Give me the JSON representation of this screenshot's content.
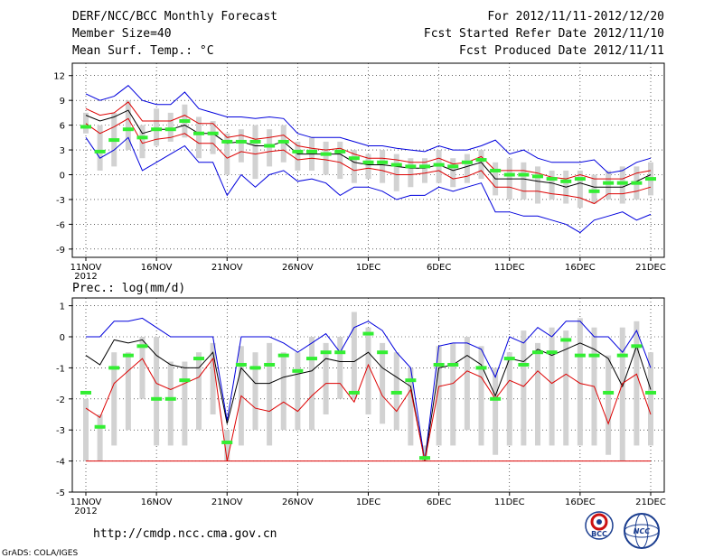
{
  "header": {
    "title": "DERF/NCC/BCC Monthly Forecast",
    "member_size": "Member Size=40",
    "variable": "Mean Surf. Temp.: °C",
    "period": "For 2012/11/11-2012/12/20",
    "fcst_started": "Fcst Started Refer Date 2012/11/10",
    "fcst_produced": "Fcst Produced Date 2012/11/11"
  },
  "footer": {
    "url": "http://cmdp.ncc.cma.gov.cn",
    "grads_credit": "GrADS: COLA/IGES",
    "logo_left_text": "BCC",
    "logo_right_text": "NCC"
  },
  "chart_data": [
    {
      "type": "line",
      "title": "Mean Surf. Temp.: °C",
      "x_tick_labels": [
        "11NOV",
        "16NOV",
        "21NOV",
        "26NOV",
        "1DEC",
        "6DEC",
        "11DEC",
        "16DEC",
        "21DEC"
      ],
      "x_year_label": "2012",
      "y_ticks": [
        12,
        9,
        6,
        3,
        0,
        -3,
        -6,
        -9
      ],
      "ylim": [
        -10,
        13.5
      ],
      "grid": true,
      "series": [
        {
          "name": "max",
          "color": "#0000dd",
          "values": [
            9.8,
            9,
            9.5,
            10.8,
            9,
            8.5,
            8.5,
            10,
            8,
            7.5,
            7,
            7,
            6.8,
            7,
            6.8,
            5,
            4.5,
            4.5,
            4.5,
            4,
            3.5,
            3.5,
            3.2,
            3,
            2.8,
            3.5,
            3,
            3,
            3.5,
            4.2,
            2.5,
            3,
            2,
            1.5,
            1.5,
            1.5,
            1.8,
            0.2,
            0.5,
            1.5,
            2
          ]
        },
        {
          "name": "upper",
          "color": "#dd0000",
          "values": [
            8,
            7.2,
            7.5,
            8.8,
            6.5,
            6.5,
            6.5,
            7.2,
            6.2,
            6.2,
            4.5,
            4.8,
            4.3,
            4.5,
            4.8,
            3.5,
            3.2,
            3,
            3.2,
            2.5,
            2,
            2,
            1.8,
            1.5,
            1.5,
            2,
            1.3,
            1.5,
            2.2,
            0.5,
            0.5,
            0.5,
            0.2,
            -0.3,
            -0.5,
            0,
            -0.5,
            -0.5,
            -0.5,
            0.2,
            0.5
          ]
        },
        {
          "name": "mean",
          "color": "#000000",
          "values": [
            7.2,
            6.5,
            7,
            7.8,
            5,
            5.5,
            5.5,
            6,
            5,
            5,
            3.8,
            4,
            3.5,
            3.5,
            4,
            2.5,
            2.5,
            2.5,
            2.5,
            1.5,
            1.2,
            1.2,
            1,
            0.8,
            0.8,
            1.2,
            0.5,
            1,
            1.5,
            -0.5,
            -0.5,
            -0.5,
            -0.8,
            -1,
            -1.5,
            -1,
            -1.5,
            -1.5,
            -1.5,
            -0.8,
            0
          ]
        },
        {
          "name": "lower",
          "color": "#dd0000",
          "values": [
            6.2,
            5,
            5.8,
            6.8,
            3.8,
            4.3,
            4.5,
            5,
            3.8,
            3.8,
            2,
            2.8,
            2.5,
            2.8,
            3,
            1.8,
            2,
            1.8,
            1.5,
            0.5,
            0.8,
            0.5,
            0,
            0,
            0.2,
            0.5,
            -0.5,
            -0.2,
            0.5,
            -1.5,
            -1.5,
            -2,
            -2,
            -2.3,
            -2.5,
            -2.8,
            -3.5,
            -2.3,
            -2.3,
            -2,
            -1.5
          ]
        },
        {
          "name": "min",
          "color": "#0000dd",
          "values": [
            4.5,
            2,
            3,
            4.5,
            0.5,
            1.5,
            2.5,
            3.5,
            1.5,
            1.5,
            -2.5,
            0,
            -1.5,
            0,
            0.5,
            -0.8,
            -0.5,
            -1,
            -2.5,
            -1.5,
            -1.5,
            -2,
            -3,
            -2.5,
            -2.5,
            -1.5,
            -2,
            -1.5,
            -1,
            -4.5,
            -4.5,
            -5,
            -5,
            -5.5,
            -6,
            -7,
            -5.5,
            -5,
            -4.5,
            -5.5,
            -4.8
          ]
        }
      ],
      "box_ranges": [
        [
          5,
          7.5
        ],
        [
          0.5,
          6
        ],
        [
          1,
          7.5
        ],
        [
          3,
          9
        ],
        [
          2,
          6
        ],
        [
          3.5,
          8
        ],
        [
          4,
          7.5
        ],
        [
          4.5,
          8.5
        ],
        [
          2,
          7
        ],
        [
          2.5,
          6.5
        ],
        [
          0,
          5
        ],
        [
          1.5,
          5.5
        ],
        [
          -0.5,
          6
        ],
        [
          1,
          5.5
        ],
        [
          1.5,
          6
        ],
        [
          0.5,
          4
        ],
        [
          0.5,
          4.5
        ],
        [
          0,
          4
        ],
        [
          -0.5,
          4
        ],
        [
          -1,
          3
        ],
        [
          -0.5,
          2.5
        ],
        [
          -1,
          3
        ],
        [
          -2,
          2.5
        ],
        [
          -1.5,
          2
        ],
        [
          -1,
          2
        ],
        [
          -1,
          3
        ],
        [
          -1.5,
          2
        ],
        [
          -1,
          2.5
        ],
        [
          -0.5,
          3
        ],
        [
          -2.5,
          1.5
        ],
        [
          -3,
          2
        ],
        [
          -3,
          1.5
        ],
        [
          -3.5,
          1
        ],
        [
          -3,
          0.5
        ],
        [
          -3.5,
          0.5
        ],
        [
          -4,
          0.5
        ],
        [
          -3.5,
          0
        ],
        [
          -3,
          0.5
        ],
        [
          -3.5,
          1
        ],
        [
          -3,
          1
        ],
        [
          -2.5,
          1.5
        ]
      ],
      "observed_markers": [
        5.8,
        2.8,
        4.2,
        5.5,
        4.5,
        5.5,
        5.5,
        6.5,
        5,
        5,
        4,
        4,
        4,
        3.5,
        4,
        2.8,
        2.8,
        2.5,
        2.8,
        2,
        1.5,
        1.5,
        1.2,
        1,
        1,
        1.2,
        1,
        1.5,
        1.8,
        0.5,
        0,
        0,
        -0.2,
        -0.5,
        -0.8,
        -0.5,
        -2,
        -1,
        -1,
        -1,
        -0.5
      ]
    },
    {
      "type": "line",
      "title": "Prec.: log(mm/d)",
      "x_tick_labels": [
        "11NOV",
        "16NOV",
        "21NOV",
        "26NOV",
        "1DEC",
        "6DEC",
        "11DEC",
        "16DEC",
        "21DEC"
      ],
      "x_year_label": "2012",
      "y_ticks": [
        1,
        0,
        -1,
        -2,
        -3,
        -4,
        -5
      ],
      "ylim": [
        -5,
        1.25
      ],
      "grid": true,
      "series": [
        {
          "name": "max",
          "color": "#0000dd",
          "values": [
            0,
            0,
            0.5,
            0.5,
            0.6,
            0.3,
            0,
            0,
            0,
            0,
            -2.7,
            0,
            0,
            0,
            -0.2,
            -0.5,
            -0.2,
            0.1,
            -0.5,
            0.3,
            0.5,
            0.2,
            -0.5,
            -1,
            -4,
            -0.3,
            -0.2,
            -0.2,
            -0.4,
            -1.3,
            0,
            -0.2,
            0.3,
            0,
            0.5,
            0.5,
            0,
            0,
            -0.5,
            0.2,
            -1
          ]
        },
        {
          "name": "mean",
          "color": "#000000",
          "values": [
            -0.6,
            -0.9,
            -0.1,
            -0.2,
            -0.1,
            -0.6,
            -0.9,
            -1,
            -1,
            -0.5,
            -2.8,
            -1,
            -1.5,
            -1.5,
            -1.3,
            -1.2,
            -1.1,
            -0.7,
            -0.8,
            -0.8,
            -0.5,
            -1,
            -1.3,
            -1.6,
            -4,
            -1,
            -0.9,
            -0.6,
            -0.9,
            -1.9,
            -0.7,
            -0.8,
            -0.4,
            -0.6,
            -0.4,
            -0.2,
            -0.4,
            -0.7,
            -1.6,
            -0.3,
            -1.7
          ]
        },
        {
          "name": "lower",
          "color": "#dd0000",
          "values": [
            -2.3,
            -2.6,
            -1.5,
            -1.1,
            -0.7,
            -1.5,
            -1.7,
            -1.5,
            -1.3,
            -0.7,
            -4,
            -1.9,
            -2.3,
            -2.4,
            -2.1,
            -2.4,
            -1.9,
            -1.5,
            -1.5,
            -2.1,
            -0.9,
            -1.9,
            -2.4,
            -1.7,
            -4,
            -1.6,
            -1.5,
            -1.1,
            -1.3,
            -2,
            -1.4,
            -1.6,
            -1.1,
            -1.5,
            -1.2,
            -1.5,
            -1.6,
            -2.8,
            -1.5,
            -1.2,
            -2.5
          ]
        }
      ],
      "floor_value": -4,
      "box_ranges": [
        [
          -4,
          -2
        ],
        [
          -4,
          -2.5
        ],
        [
          -3.5,
          -0.5
        ],
        [
          -3,
          -0.5
        ],
        [
          -2,
          0
        ],
        [
          -3.5,
          0
        ],
        [
          -3.5,
          -0.8
        ],
        [
          -3.5,
          -0.8
        ],
        [
          -3,
          -0.5
        ],
        [
          -2.5,
          -0.2
        ],
        [
          -4,
          -3
        ],
        [
          -3.5,
          -0.3
        ],
        [
          -3,
          -0.5
        ],
        [
          -3.5,
          -0.2
        ],
        [
          -3,
          -0.5
        ],
        [
          -3,
          -0.5
        ],
        [
          -3,
          0
        ],
        [
          -2.5,
          -0.2
        ],
        [
          -2,
          0
        ],
        [
          -2,
          0.8
        ],
        [
          -2.5,
          0.3
        ],
        [
          -2.8,
          -0.2
        ],
        [
          -3,
          -0.5
        ],
        [
          -3.5,
          -1
        ],
        [
          -4,
          -3.5
        ],
        [
          -3.5,
          -0.3
        ],
        [
          -3.5,
          -0.2
        ],
        [
          -3,
          0
        ],
        [
          -3.5,
          -0.3
        ],
        [
          -3.8,
          -1
        ],
        [
          -3.5,
          -0.5
        ],
        [
          -3.5,
          0.2
        ],
        [
          -3.5,
          -0.2
        ],
        [
          -3.5,
          0.3
        ],
        [
          -3.5,
          0.2
        ],
        [
          -3.5,
          0.6
        ],
        [
          -3.5,
          0.3
        ],
        [
          -3.8,
          -0.6
        ],
        [
          -4,
          0.3
        ],
        [
          -3.5,
          0.5
        ],
        [
          -3.5,
          -0.5
        ]
      ],
      "observed_markers": [
        -1.8,
        -2.9,
        -1,
        -0.6,
        -0.3,
        -2,
        -2,
        -1.4,
        -0.7,
        null,
        -3.4,
        -0.9,
        -1,
        -0.9,
        -0.6,
        -1.1,
        -0.7,
        -0.5,
        -0.5,
        -1.8,
        0.1,
        -0.5,
        -1.8,
        -1.4,
        -3.9,
        -0.9,
        -0.9,
        null,
        -1,
        -2,
        -0.7,
        -0.9,
        -0.5,
        -0.5,
        -0.1,
        -0.6,
        -0.6,
        -1.8,
        -0.6,
        -0.3,
        -1.8
      ]
    }
  ]
}
